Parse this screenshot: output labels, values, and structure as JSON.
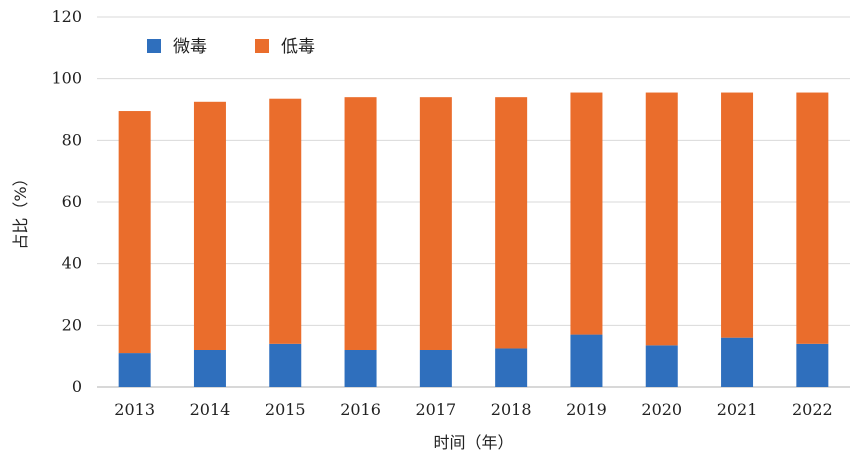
{
  "chart_data": {
    "type": "bar",
    "stacked": true,
    "title": "",
    "xlabel": "时间（年）",
    "ylabel": "占比（%）",
    "categories": [
      "2013",
      "2014",
      "2015",
      "2016",
      "2017",
      "2018",
      "2019",
      "2020",
      "2021",
      "2022"
    ],
    "series": [
      {
        "name": "微毒",
        "color": "#2f6fbd",
        "values": [
          11,
          12,
          14,
          12,
          12,
          12.5,
          17,
          13.5,
          16,
          14
        ]
      },
      {
        "name": "低毒",
        "color": "#ea6d2c",
        "values": [
          78.5,
          80.5,
          79.5,
          82,
          82,
          81.5,
          78.5,
          82,
          79.5,
          81.5
        ]
      }
    ],
    "ylim": [
      0,
      120
    ],
    "yticks": [
      0,
      20,
      40,
      60,
      80,
      100,
      120
    ],
    "grid": true,
    "legend_position": "top-left"
  }
}
